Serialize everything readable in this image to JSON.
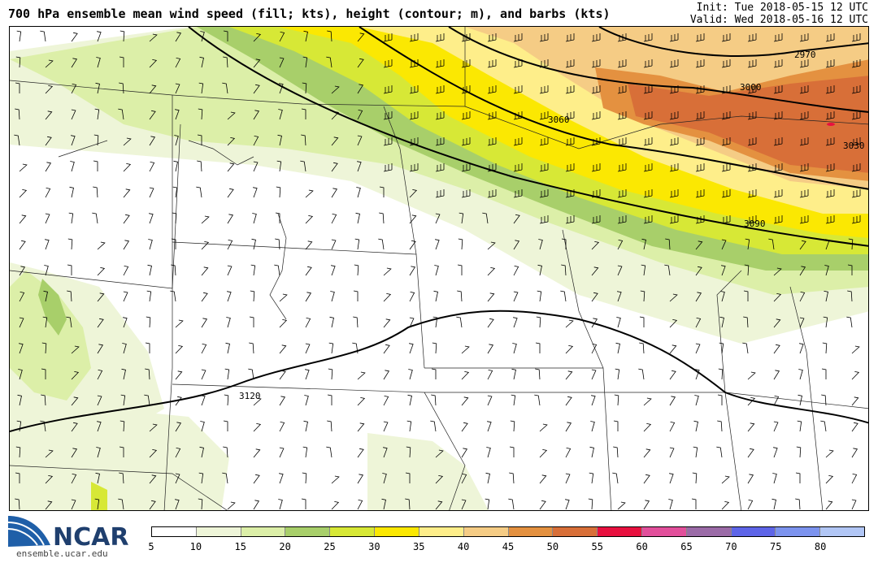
{
  "header": {
    "title": "700 hPa ensemble mean wind speed (fill; kts), height (contour; m), and barbs (kts)",
    "init": "Init: Tue 2018-05-15 12 UTC",
    "valid": "Valid: Wed 2018-05-16 12 UTC"
  },
  "map": {
    "contour_labels": [
      "2970",
      "3000",
      "3030",
      "3060",
      "3090",
      "3120"
    ],
    "fill_colors": [
      "#ffffff",
      "#eef5d8",
      "#dcefa8",
      "#a8cf6a",
      "#d7e836",
      "#fbe802",
      "#feee8a",
      "#f5cc85",
      "#e49140",
      "#d86f38",
      "#e8103f",
      "#e24f9b",
      "#9b6ba7",
      "#5e65e8",
      "#7c93ee",
      "#b1c6f5"
    ]
  },
  "colorbar": {
    "ticks": [
      "5",
      "10",
      "15",
      "20",
      "25",
      "30",
      "35",
      "40",
      "45",
      "50",
      "55",
      "60",
      "65",
      "70",
      "75",
      "80"
    ]
  },
  "logo": {
    "name": "NCAR",
    "url": "ensemble.ucar.edu"
  }
}
